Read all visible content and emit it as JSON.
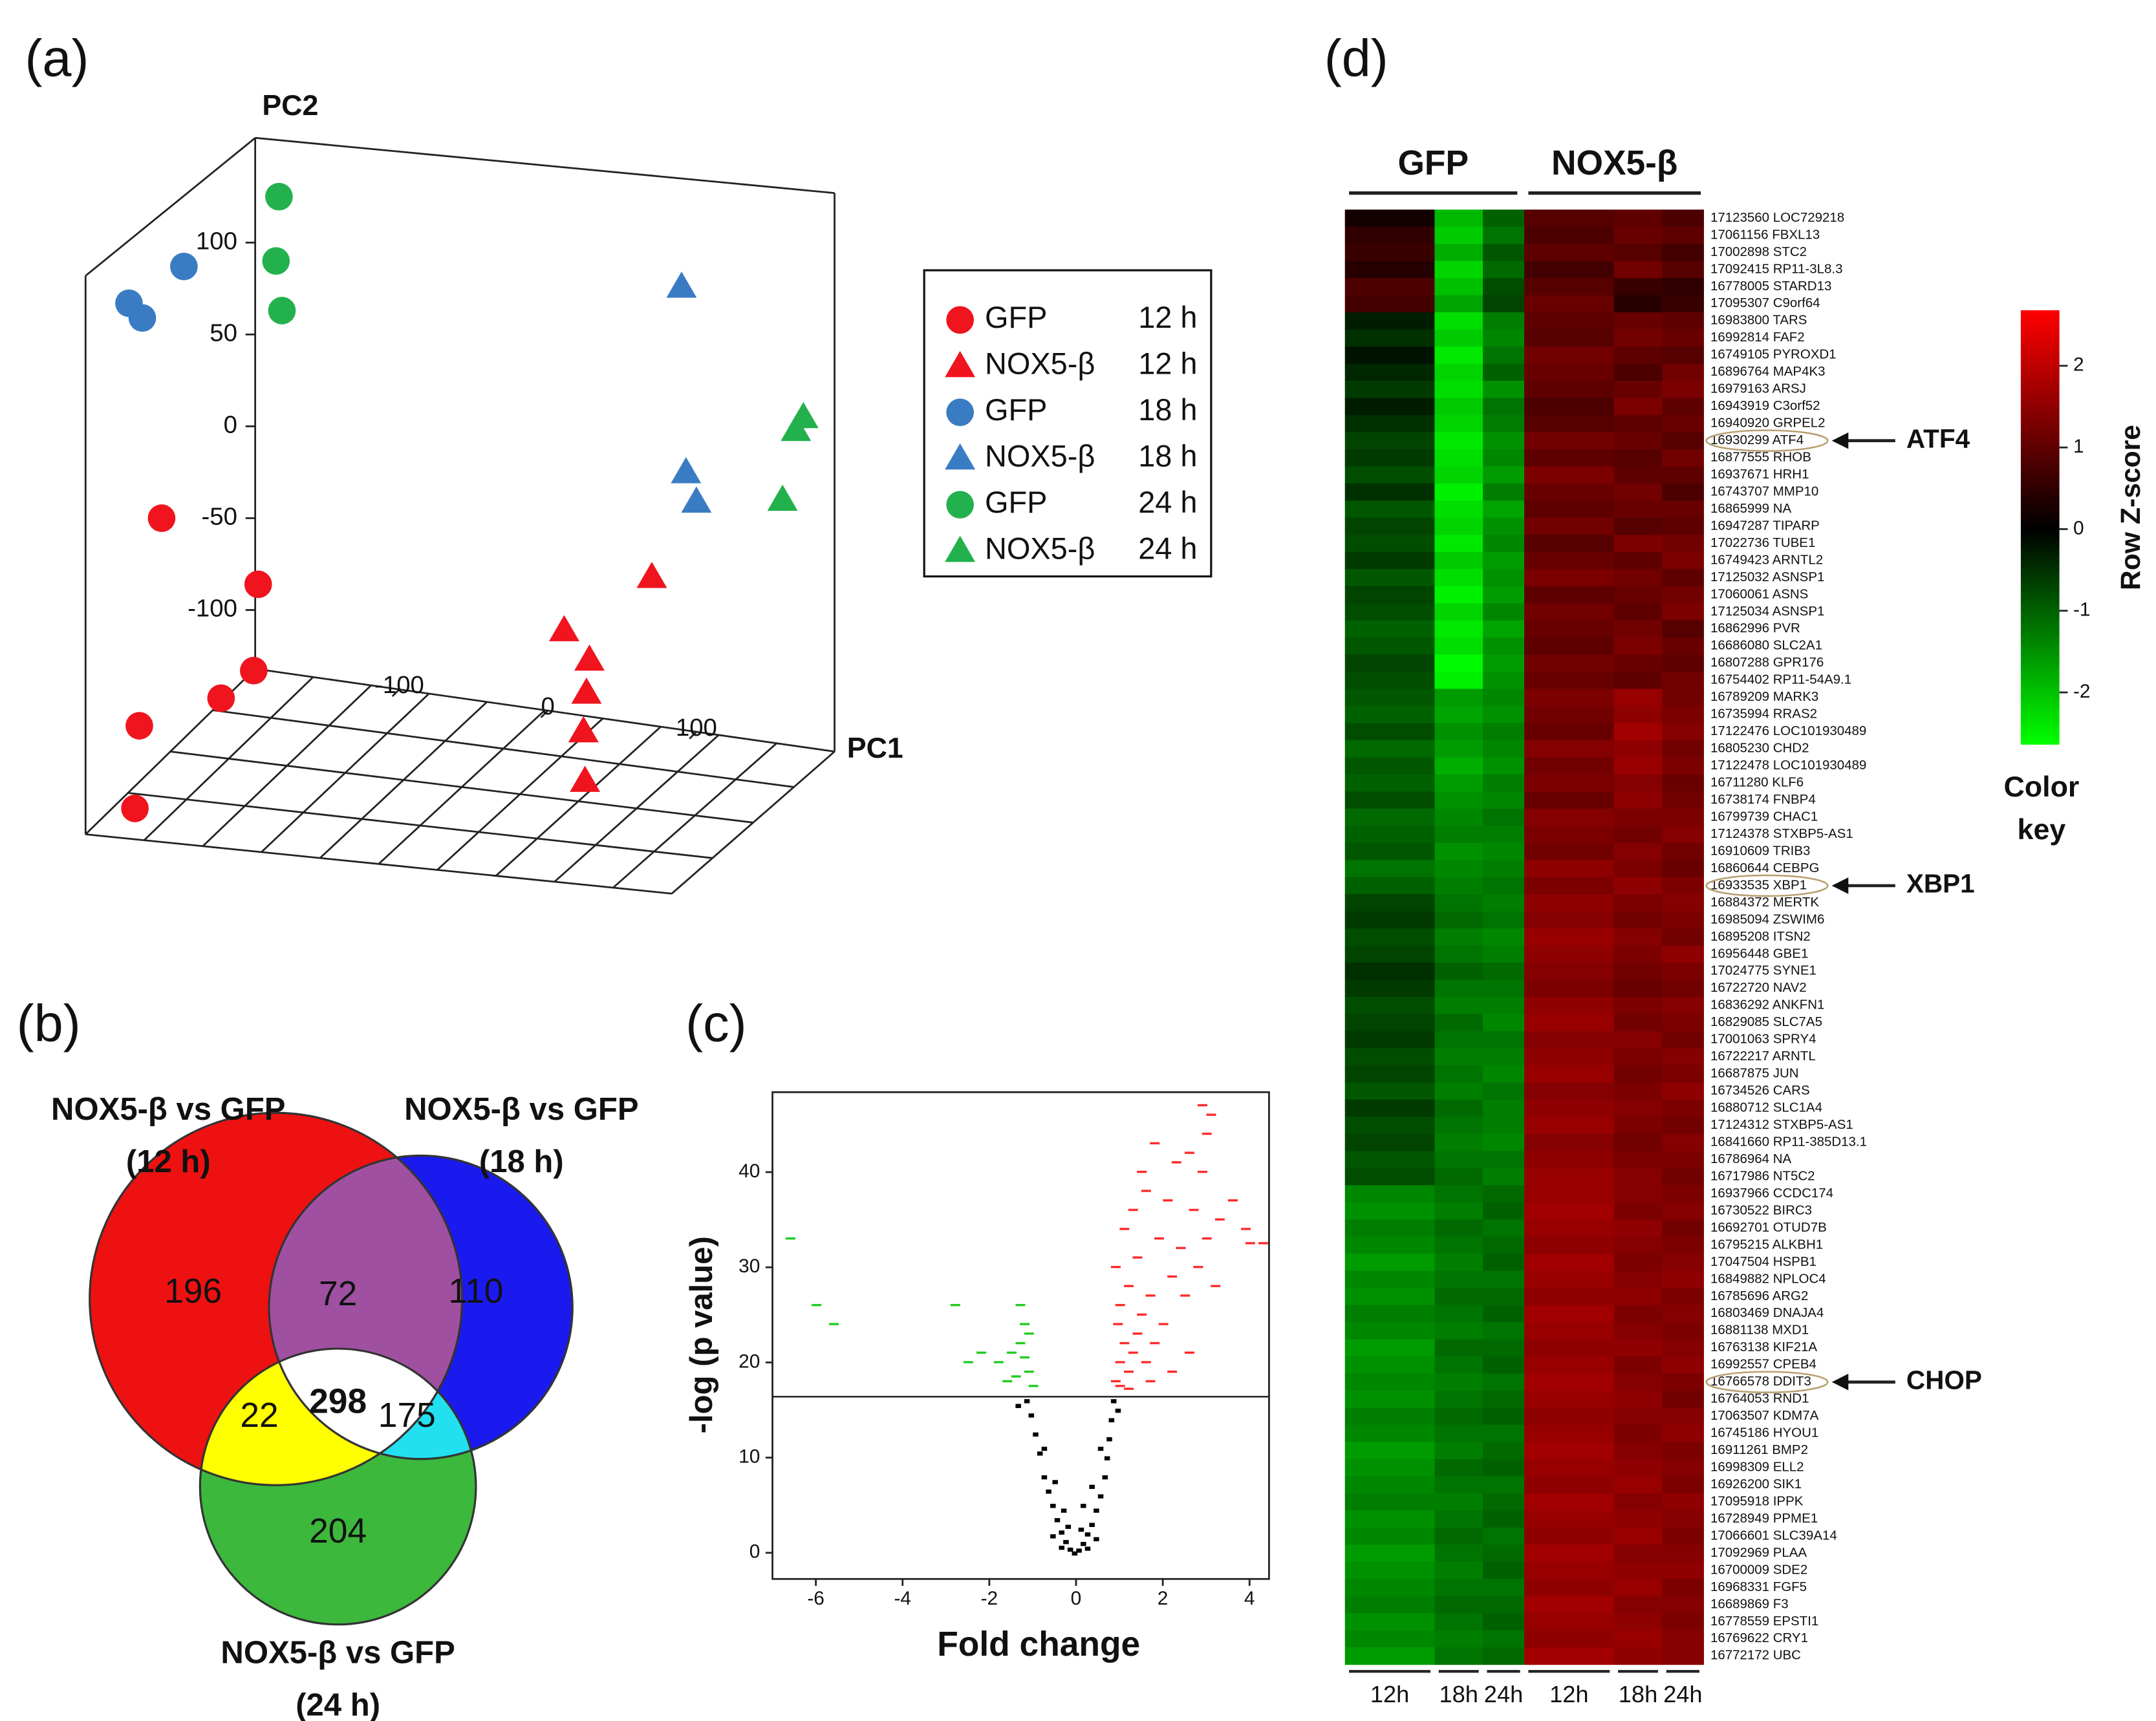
{
  "chart_data": [
    {
      "type": "scatter3d",
      "panel": "(a)",
      "xlabel": "PC1",
      "ylabel": "PC2",
      "xlim": [
        -197,
        193
      ],
      "xticks": [
        -100,
        0,
        100
      ],
      "ylim": [
        -132,
        157
      ],
      "yticks": [
        100,
        50,
        0,
        -50,
        -100
      ],
      "legend": "right",
      "series": [
        {
          "name": "GFP",
          "time": "12 h",
          "marker": "circle",
          "color": "#f0141e",
          "x": [
            -260,
            -195,
            -198,
            -220,
            -275,
            -278
          ],
          "values": [
            -50,
            -86,
            -133,
            -148,
            -163,
            -208
          ]
        },
        {
          "name": "NOX5-β",
          "time": "12 h",
          "marker": "triangle",
          "color": "#f0141e",
          "x": [
            11,
            28,
            26,
            24,
            25,
            70
          ],
          "values": [
            -111,
            -127,
            -145,
            -166,
            -193,
            -82
          ]
        },
        {
          "name": "GFP",
          "time": "18 h",
          "marker": "circle",
          "color": "#3a7cc4",
          "x": [
            -245,
            -282,
            -273
          ],
          "values": [
            87,
            67,
            59
          ]
        },
        {
          "name": "NOX5-β",
          "time": "18 h",
          "marker": "triangle",
          "color": "#3a7cc4",
          "x": [
            90,
            93,
            100
          ],
          "values": [
            76,
            -25,
            -41
          ]
        },
        {
          "name": "GFP",
          "time": "24 h",
          "marker": "circle",
          "color": "#23b14d",
          "x": [
            -181,
            -183,
            -179
          ],
          "values": [
            125,
            90,
            63
          ]
        },
        {
          "name": "NOX5-β",
          "time": "24 h",
          "marker": "triangle",
          "color": "#23b14d",
          "x": [
            172,
            167,
            158
          ],
          "values": [
            5,
            -2,
            -40
          ]
        }
      ]
    },
    {
      "type": "venn",
      "panel": "(b)",
      "sets": [
        {
          "label": "NOX5-β vs GFP",
          "sublabel": "(12 h)"
        },
        {
          "label": "NOX5-β vs GFP",
          "sublabel": "(18 h)"
        },
        {
          "label": "NOX5-β vs GFP",
          "sublabel": "(24 h)"
        }
      ],
      "values": [
        196,
        110,
        204,
        72,
        22,
        175,
        298
      ],
      "colors": [
        "#ee1111",
        "#1a1aee",
        "#3cb83c",
        "#a050a0",
        "#ffff00",
        "#22e0f0",
        "#ffffff"
      ]
    },
    {
      "type": "scatter",
      "panel": "(c)",
      "xlabel": "Fold change",
      "ylabel": "-log (p value)",
      "xlim": [
        -7,
        4.45
      ],
      "xticks": [
        -6,
        -4,
        -2,
        0,
        2,
        4
      ],
      "ylim": [
        -2.75,
        48.4
      ],
      "yticks": [
        0,
        10,
        20,
        30,
        40
      ],
      "hline": 16.4,
      "series": [
        {
          "color": "#ff2a2a",
          "x": [
            0.9,
            1.0,
            1.1,
            0.95,
            1.2,
            1.3,
            1.0,
            1.4,
            1.5,
            1.2,
            0.9,
            1.6,
            1.8,
            1.7,
            1.4,
            2.0,
            2.2,
            1.9,
            1.1,
            1.3,
            2.5,
            2.4,
            2.8,
            3.0,
            1.6,
            2.1,
            1.5,
            2.3,
            1.8,
            2.9,
            2.6,
            3.0,
            3.1,
            2.9,
            3.6,
            3.9,
            4.0,
            4.3,
            3.3,
            2.7,
            1.0,
            1.2,
            1.7,
            2.2,
            2.6,
            3.2
          ],
          "values": [
            18,
            20,
            22,
            24,
            19,
            21,
            26,
            23,
            25,
            28,
            30,
            20,
            22,
            27,
            31,
            24,
            29,
            33,
            34,
            36,
            27,
            32,
            30,
            33,
            38,
            37,
            40,
            41,
            43,
            40,
            42,
            44,
            46,
            47,
            37,
            34,
            32.5,
            32.5,
            35,
            36,
            17.5,
            17.2,
            18,
            19,
            21,
            28
          ]
        },
        {
          "color": "#22cc22",
          "x": [
            -6.6,
            -6.0,
            -5.6,
            -2.8,
            -1.3,
            -1.2,
            -1.1,
            -1.3,
            -1.5,
            -2.2,
            -1.8,
            -1.1,
            -1.4,
            -1.6,
            -1.0,
            -1.2,
            -2.5
          ],
          "values": [
            33,
            26,
            24,
            26,
            26,
            24,
            23,
            22,
            21,
            21,
            20,
            19,
            18.5,
            18,
            17.5,
            20.5,
            20
          ]
        },
        {
          "color": "#000000",
          "x": [
            0,
            0.1,
            -0.1,
            0.2,
            -0.2,
            0.3,
            -0.3,
            0.4,
            -0.4,
            0.5,
            -0.5,
            0.6,
            -0.6,
            0.7,
            -0.7,
            0.75,
            -0.8,
            0.8,
            -0.9,
            0.85,
            -1.0,
            0.9,
            -1.1,
            0.3,
            -0.3,
            0.5,
            -0.5,
            0.15,
            -0.15,
            1.0,
            -1.3,
            0.6,
            -0.7,
            0.4,
            -0.45,
            0.2,
            -0.25
          ],
          "values": [
            0,
            0.3,
            0.4,
            1,
            1.2,
            2,
            2.2,
            3,
            3.5,
            4.5,
            5,
            6,
            6.5,
            8,
            8,
            10,
            10.5,
            12,
            12.5,
            14,
            14.5,
            16,
            16,
            0.5,
            0.6,
            1.5,
            1.8,
            2.5,
            2.8,
            15,
            15.5,
            11,
            11,
            7,
            7.5,
            5,
            4.5
          ]
        }
      ]
    },
    {
      "type": "heatmap",
      "panel": "(d)",
      "groups": [
        "GFP",
        "NOX5-β"
      ],
      "columns": [
        "12h",
        "18h",
        "24h",
        "12h",
        "18h",
        "24h"
      ],
      "rows": [
        "17123560 LOC729218",
        "17061156 FBXL13",
        "17002898 STC2",
        "17092415 RP11-3L8.3",
        "16778005 STARD13",
        "17095307 C9orf64",
        "16983800 TARS",
        "16992814 FAF2",
        "16749105 PYROXD1",
        "16896764 MAP4K3",
        "16979163 ARSJ",
        "16943919 C3orf52",
        "16940920 GRPEL2",
        "16930299 ATF4",
        "16877555 RHOB",
        "16937671 HRH1",
        "16743707 MMP10",
        "16865999 NA",
        "16947287 TIPARP",
        "17022736 TUBE1",
        "16749423 ARNTL2",
        "17125032 ASNSP1",
        "17060061 ASNS",
        "17125034 ASNSP1",
        "16862996 PVR",
        "16686080 SLC2A1",
        "16807288 GPR176",
        "16754402 RP11-54A9.1",
        "16789209 MARK3",
        "16735994 RRAS2",
        "17122476 LOC101930489",
        "16805230 CHD2",
        "17122478 LOC101930489",
        "16711280 KLF6",
        "16738174 FNBP4",
        "16799739 CHAC1",
        "17124378 STXBP5-AS1",
        "16910609 TRIB3",
        "16860644 CEBPG",
        "16933535 XBP1",
        "16884372 MERTK",
        "16985094 ZSWIM6",
        "16895208 ITSN2",
        "16956448 GBE1",
        "17024775 SYNE1",
        "16722720 NAV2",
        "16836292 ANKFN1",
        "16829085 SLC7A5",
        "17001063 SPRY4",
        "16722217 ARNTL",
        "16687875 JUN",
        "16734526 CARS",
        "16880712 SLC1A4",
        "17124312 STXBP5-AS1",
        "16841660 RP11-385D13.1",
        "16786964 NA",
        "16717986 NT5C2",
        "16937966 CCDC174",
        "16730522 BIRC3",
        "16692701 OTUD7B",
        "16795215 ALKBH1",
        "17047504 HSPB1",
        "16849882 NPLOC4",
        "16785696 ARG2",
        "16803469 DNAJA4",
        "16881138 MXD1",
        "16763138 KIF21A",
        "16992557 CPEB4",
        "16766578 DDIT3",
        "16764053 RND1",
        "17063507 KDM7A",
        "16745186 HYOU1",
        "16911261 BMP2",
        "16998309 ELL2",
        "16926200 SIK1",
        "17095918 IPPK",
        "16728949 PPME1",
        "17066601 SLC39A14",
        "17092969 PLAA",
        "16700009 SDE2",
        "16968331 FGF5",
        "16689869 F3",
        "16778559 EPSTI1",
        "16769622 CRY1",
        "16772172 UBC"
      ],
      "values": [
        [
          0.2,
          -1.9,
          -1.0,
          0.9,
          1.0,
          0.8
        ],
        [
          0.5,
          -2.1,
          -1.2,
          0.8,
          1.1,
          1.0
        ],
        [
          0.6,
          -1.8,
          -0.9,
          1.0,
          0.9,
          0.7
        ],
        [
          0.4,
          -2.2,
          -1.1,
          0.7,
          1.2,
          0.9
        ],
        [
          0.8,
          -2.0,
          -0.8,
          0.9,
          0.6,
          0.5
        ],
        [
          0.7,
          -1.7,
          -0.7,
          1.1,
          0.4,
          0.6
        ],
        [
          -0.3,
          -2.3,
          -1.3,
          1.0,
          1.1,
          1.0
        ],
        [
          -0.5,
          -2.1,
          -1.4,
          0.9,
          1.2,
          1.1
        ],
        [
          -0.2,
          -2.4,
          -1.2,
          1.2,
          1.0,
          0.9
        ],
        [
          -0.4,
          -2.2,
          -1.0,
          1.1,
          0.8,
          1.2
        ],
        [
          -0.6,
          -2.3,
          -1.5,
          1.0,
          1.1,
          1.3
        ],
        [
          -0.3,
          -2.1,
          -1.2,
          0.8,
          1.3,
          1.0
        ],
        [
          -0.5,
          -2.2,
          -1.3,
          0.9,
          1.0,
          1.1
        ],
        [
          -0.7,
          -2.4,
          -1.5,
          1.2,
          1.1,
          0.9
        ],
        [
          -0.6,
          -2.3,
          -1.4,
          1.0,
          0.9,
          1.2
        ],
        [
          -0.8,
          -2.2,
          -1.6,
          1.3,
          1.0,
          1.0
        ],
        [
          -0.5,
          -2.5,
          -1.3,
          1.1,
          1.2,
          0.8
        ],
        [
          -0.9,
          -2.3,
          -1.7,
          1.0,
          1.1,
          1.1
        ],
        [
          -0.7,
          -2.2,
          -1.5,
          1.2,
          0.9,
          1.0
        ],
        [
          -0.8,
          -2.4,
          -1.4,
          0.9,
          1.3,
          1.2
        ],
        [
          -0.6,
          -2.1,
          -1.6,
          1.1,
          1.0,
          1.3
        ],
        [
          -0.9,
          -2.3,
          -1.5,
          1.3,
          1.2,
          1.0
        ],
        [
          -0.7,
          -2.5,
          -1.6,
          1.0,
          1.1,
          1.2
        ],
        [
          -0.8,
          -2.2,
          -1.4,
          1.2,
          1.0,
          1.3
        ],
        [
          -1.0,
          -2.4,
          -1.7,
          1.1,
          1.2,
          0.9
        ],
        [
          -0.9,
          -2.3,
          -1.5,
          1.0,
          1.3,
          1.1
        ],
        [
          -0.7,
          -2.6,
          -1.6,
          1.2,
          1.1,
          1.0
        ],
        [
          -0.8,
          -2.5,
          -1.5,
          1.1,
          1.0,
          1.2
        ],
        [
          -0.9,
          -1.6,
          -1.4,
          1.3,
          1.6,
          1.2
        ],
        [
          -1.0,
          -1.7,
          -1.5,
          1.2,
          1.5,
          1.3
        ],
        [
          -0.8,
          -1.5,
          -1.3,
          1.1,
          1.7,
          1.4
        ],
        [
          -1.1,
          -1.6,
          -1.4,
          1.4,
          1.5,
          1.2
        ],
        [
          -0.9,
          -1.8,
          -1.5,
          1.2,
          1.6,
          1.3
        ],
        [
          -1.0,
          -1.6,
          -1.3,
          1.3,
          1.4,
          1.1
        ],
        [
          -0.8,
          -1.5,
          -1.4,
          1.1,
          1.5,
          1.2
        ],
        [
          -1.1,
          -1.4,
          -1.2,
          1.4,
          1.3,
          1.3
        ],
        [
          -1.0,
          -1.3,
          -1.3,
          1.3,
          1.2,
          1.4
        ],
        [
          -0.9,
          -1.5,
          -1.4,
          1.2,
          1.4,
          1.2
        ],
        [
          -1.2,
          -1.4,
          -1.3,
          1.5,
          1.3,
          1.1
        ],
        [
          -1.0,
          -1.3,
          -1.2,
          1.3,
          1.5,
          1.3
        ],
        [
          -0.7,
          -1.2,
          -1.3,
          1.5,
          1.3,
          1.4
        ],
        [
          -0.6,
          -1.1,
          -1.2,
          1.4,
          1.2,
          1.3
        ],
        [
          -0.8,
          -1.3,
          -1.4,
          1.6,
          1.4,
          1.2
        ],
        [
          -0.7,
          -1.2,
          -1.3,
          1.5,
          1.3,
          1.5
        ],
        [
          -0.5,
          -1.0,
          -1.1,
          1.4,
          1.2,
          1.3
        ],
        [
          -0.6,
          -1.2,
          -1.2,
          1.3,
          1.1,
          1.2
        ],
        [
          -0.8,
          -1.3,
          -1.3,
          1.5,
          1.3,
          1.4
        ],
        [
          -0.7,
          -1.1,
          -1.4,
          1.6,
          1.2,
          1.3
        ],
        [
          -0.6,
          -1.2,
          -1.2,
          1.4,
          1.4,
          1.2
        ],
        [
          -0.8,
          -1.3,
          -1.3,
          1.5,
          1.3,
          1.4
        ],
        [
          -0.7,
          -1.2,
          -1.4,
          1.6,
          1.2,
          1.3
        ],
        [
          -0.9,
          -1.3,
          -1.2,
          1.4,
          1.3,
          1.5
        ],
        [
          -0.6,
          -1.1,
          -1.3,
          1.5,
          1.4,
          1.3
        ],
        [
          -0.8,
          -1.2,
          -1.3,
          1.6,
          1.3,
          1.2
        ],
        [
          -0.7,
          -1.3,
          -1.4,
          1.4,
          1.2,
          1.4
        ],
        [
          -0.9,
          -1.2,
          -1.2,
          1.5,
          1.3,
          1.3
        ],
        [
          -0.8,
          -1.1,
          -1.3,
          1.6,
          1.4,
          1.2
        ],
        [
          -1.4,
          -1.2,
          -1.1,
          1.6,
          1.4,
          1.3
        ],
        [
          -1.5,
          -1.3,
          -1.0,
          1.7,
          1.3,
          1.4
        ],
        [
          -1.3,
          -1.1,
          -1.2,
          1.6,
          1.5,
          1.2
        ],
        [
          -1.4,
          -1.2,
          -1.1,
          1.5,
          1.4,
          1.3
        ],
        [
          -1.6,
          -1.3,
          -1.0,
          1.7,
          1.3,
          1.4
        ],
        [
          -1.4,
          -1.2,
          -1.2,
          1.6,
          1.4,
          1.5
        ],
        [
          -1.5,
          -1.1,
          -1.1,
          1.5,
          1.5,
          1.3
        ],
        [
          -1.3,
          -1.2,
          -1.0,
          1.7,
          1.3,
          1.4
        ],
        [
          -1.4,
          -1.3,
          -1.2,
          1.6,
          1.4,
          1.3
        ],
        [
          -1.6,
          -1.1,
          -1.1,
          1.5,
          1.5,
          1.4
        ],
        [
          -1.5,
          -1.2,
          -1.0,
          1.6,
          1.3,
          1.5
        ],
        [
          -1.4,
          -1.3,
          -1.2,
          1.7,
          1.4,
          1.3
        ],
        [
          -1.5,
          -1.2,
          -1.1,
          1.6,
          1.5,
          1.2
        ],
        [
          -1.3,
          -1.1,
          -1.0,
          1.5,
          1.4,
          1.4
        ],
        [
          -1.4,
          -1.2,
          -1.2,
          1.6,
          1.3,
          1.5
        ],
        [
          -1.6,
          -1.3,
          -1.1,
          1.7,
          1.4,
          1.3
        ],
        [
          -1.5,
          -1.1,
          -1.0,
          1.6,
          1.5,
          1.4
        ],
        [
          -1.4,
          -1.2,
          -1.2,
          1.5,
          1.6,
          1.3
        ],
        [
          -1.3,
          -1.3,
          -1.1,
          1.7,
          1.4,
          1.5
        ],
        [
          -1.5,
          -1.2,
          -1.0,
          1.6,
          1.5,
          1.4
        ],
        [
          -1.4,
          -1.1,
          -1.2,
          1.5,
          1.6,
          1.3
        ],
        [
          -1.6,
          -1.2,
          -1.1,
          1.7,
          1.4,
          1.4
        ],
        [
          -1.5,
          -1.3,
          -1.0,
          1.6,
          1.5,
          1.5
        ],
        [
          -1.4,
          -1.2,
          -1.2,
          1.5,
          1.6,
          1.3
        ],
        [
          -1.3,
          -1.1,
          -1.1,
          1.7,
          1.4,
          1.4
        ],
        [
          -1.5,
          -1.2,
          -1.0,
          1.6,
          1.5,
          1.3
        ],
        [
          -1.4,
          -1.3,
          -1.2,
          1.5,
          1.6,
          1.4
        ],
        [
          -1.6,
          -1.2,
          -1.1,
          1.7,
          1.5,
          1.4
        ]
      ],
      "annotations": [
        "ATF4",
        "XBP1",
        "CHOP"
      ],
      "colors": [
        "#00ff00",
        "#000000",
        "#ff0000"
      ],
      "zlim": [
        -2.64,
        2.68
      ],
      "zticks": [
        2,
        1,
        0,
        -1,
        -2
      ],
      "colorbar_title": [
        "Color",
        "key"
      ],
      "colorbar_label": "Row Z-score"
    }
  ]
}
